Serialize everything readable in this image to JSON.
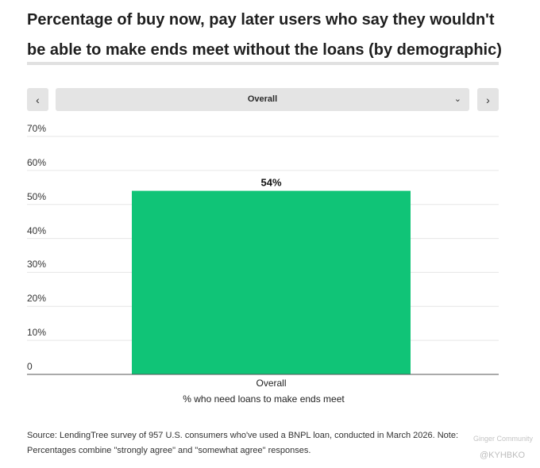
{
  "title": "Percentage of buy now, pay later users who say they wouldn't be able to make ends meet without the loans (by demographic)",
  "selector": {
    "prev_symbol": "‹",
    "next_symbol": "›",
    "selected": "Overall",
    "chevron_symbol": "⌄"
  },
  "chart_data": {
    "type": "bar",
    "categories": [
      "Overall"
    ],
    "values": [
      54
    ],
    "data_labels": [
      "54%"
    ],
    "xlabel": "% who need loans to make ends meet",
    "ylabel": "",
    "ylim": [
      0,
      70
    ],
    "yticks": [
      0,
      10,
      20,
      30,
      40,
      50,
      60,
      70
    ],
    "ytick_labels": [
      "0",
      "10%",
      "20%",
      "30%",
      "40%",
      "50%",
      "60%",
      "70%"
    ],
    "grid": true,
    "bar_color": "#10c477"
  },
  "source": "Source: LendingTree survey of 957 U.S. consumers who've used a BNPL loan, conducted in March 2026. Note: Percentages combine \"strongly agree\" and \"somewhat agree\" responses.",
  "watermark": {
    "community": "Ginger Community",
    "handle": "@KYHBKO"
  }
}
